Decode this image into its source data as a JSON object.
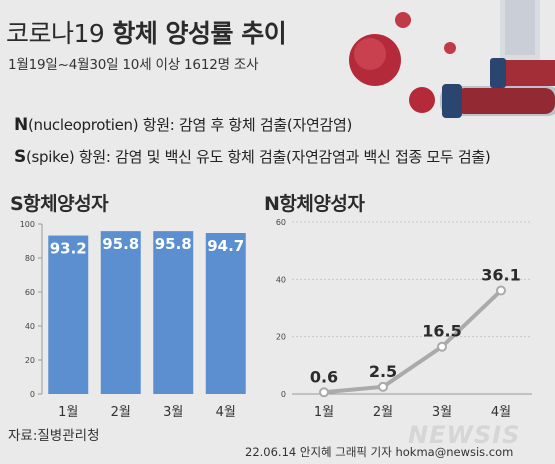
{
  "header": {
    "title_light": "코로나19",
    "title_bold": "항체 양성률 추이",
    "subtitle": "1월19일~4월30일 10세 이상 1612명 조사"
  },
  "antigens": {
    "n": {
      "letter": "N",
      "text": "(nucleoprotien) 항원: 감염 후 항체 검출(자연감염)"
    },
    "s": {
      "letter": "S",
      "text": "(spike) 항원: 감염 및 백신 유도 항체 검출(자연감염과 백신 접종 모두 검출)"
    }
  },
  "colors": {
    "bar": "#5b8fcf",
    "line": "#aaaaaa",
    "marker": "#ffffff",
    "virus": "#b52a3a"
  },
  "chart_data": [
    {
      "type": "bar",
      "title": "S항체양성자",
      "categories": [
        "1월",
        "2월",
        "3월",
        "4월"
      ],
      "values": [
        93.2,
        95.8,
        95.8,
        94.7
      ],
      "value_labels": [
        "93.2",
        "95.8",
        "95.8",
        "94.7"
      ],
      "ylim": [
        0,
        100
      ],
      "yticks": [
        "0",
        "20",
        "40",
        "60",
        "80",
        "100"
      ],
      "grid": false,
      "legend": "none"
    },
    {
      "type": "line",
      "title": "N항체양성자",
      "categories": [
        "1월",
        "2월",
        "3월",
        "4월"
      ],
      "values": [
        0.6,
        2.5,
        16.5,
        36.1
      ],
      "value_labels": [
        "0.6",
        "2.5",
        "16.5",
        "36.1"
      ],
      "ylim": [
        0,
        60
      ],
      "yticks": [
        "0",
        "20",
        "40",
        "60"
      ],
      "grid": true,
      "legend": "none"
    }
  ],
  "footer": {
    "source": "자료:질병관리청",
    "credit": "22.06.14 안지혜 그래픽 기자 hokma@newsis.com",
    "watermark": "NEWSIS"
  }
}
